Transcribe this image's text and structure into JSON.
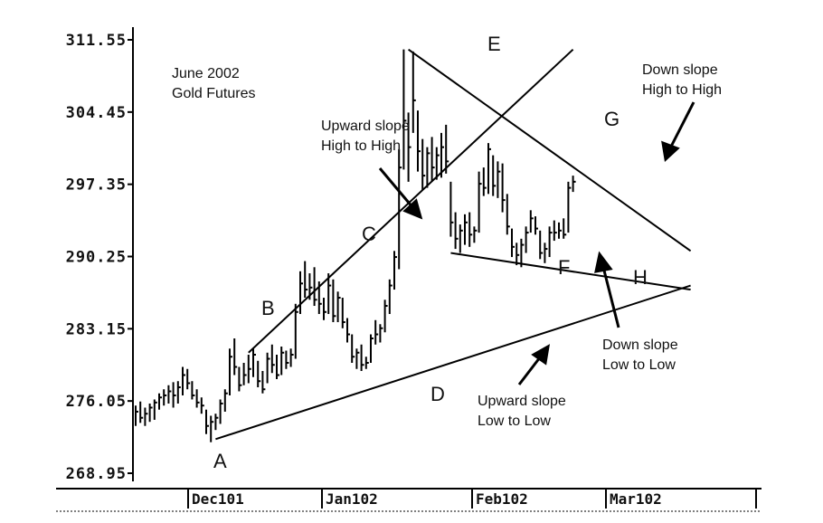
{
  "chart_data": {
    "type": "ohlc",
    "y_ticks": [
      "311.55",
      "304.45",
      "297.35",
      "290.25",
      "283.15",
      "276.05",
      "268.95"
    ],
    "ylim": [
      268.95,
      311.55
    ],
    "x_ticks": [
      "Dec101",
      "Jan102",
      "Feb102",
      "Mar102"
    ],
    "grid": false,
    "title": "June 2002\nGold Futures",
    "bars_note": "daily high-low bars, approximate",
    "bars": [
      {
        "h": 275.6,
        "l": 273.6,
        "c": 275.0
      },
      {
        "h": 276.0,
        "l": 273.9,
        "c": 274.4
      },
      {
        "h": 275.4,
        "l": 273.6,
        "c": 274.8
      },
      {
        "h": 275.8,
        "l": 274.0,
        "c": 275.4
      },
      {
        "h": 276.2,
        "l": 274.2,
        "c": 275.9
      },
      {
        "h": 276.8,
        "l": 275.2,
        "c": 276.4
      },
      {
        "h": 277.2,
        "l": 275.6,
        "c": 276.6
      },
      {
        "h": 277.6,
        "l": 275.8,
        "c": 277.0
      },
      {
        "h": 277.9,
        "l": 275.4,
        "c": 276.6
      },
      {
        "h": 278.0,
        "l": 275.8,
        "c": 277.4
      },
      {
        "h": 279.4,
        "l": 276.6,
        "c": 278.6
      },
      {
        "h": 279.2,
        "l": 277.2,
        "c": 277.8
      },
      {
        "h": 278.0,
        "l": 276.2,
        "c": 276.6
      },
      {
        "h": 277.2,
        "l": 275.4,
        "c": 275.9
      },
      {
        "h": 276.4,
        "l": 274.8,
        "c": 275.6
      },
      {
        "h": 275.2,
        "l": 272.8,
        "c": 273.6
      },
      {
        "h": 274.6,
        "l": 272.0,
        "c": 274.0
      },
      {
        "h": 274.8,
        "l": 273.2,
        "c": 274.4
      },
      {
        "h": 276.2,
        "l": 273.8,
        "c": 275.8
      },
      {
        "h": 277.2,
        "l": 275.0,
        "c": 276.8
      },
      {
        "h": 281.2,
        "l": 276.6,
        "c": 280.4
      },
      {
        "h": 282.2,
        "l": 278.6,
        "c": 279.4
      },
      {
        "h": 279.4,
        "l": 277.0,
        "c": 277.6
      },
      {
        "h": 279.8,
        "l": 277.6,
        "c": 278.6
      },
      {
        "h": 280.6,
        "l": 277.8,
        "c": 279.2
      },
      {
        "h": 281.2,
        "l": 278.4,
        "c": 280.6
      },
      {
        "h": 280.0,
        "l": 277.4,
        "c": 278.0
      },
      {
        "h": 279.0,
        "l": 276.8,
        "c": 277.2
      },
      {
        "h": 280.8,
        "l": 277.8,
        "c": 280.2
      },
      {
        "h": 281.6,
        "l": 278.8,
        "c": 279.6
      },
      {
        "h": 280.6,
        "l": 278.2,
        "c": 278.6
      },
      {
        "h": 281.4,
        "l": 278.6,
        "c": 280.8
      },
      {
        "h": 281.0,
        "l": 279.2,
        "c": 279.8
      },
      {
        "h": 281.2,
        "l": 279.4,
        "c": 280.6
      },
      {
        "h": 285.6,
        "l": 280.2,
        "c": 284.8
      },
      {
        "h": 288.8,
        "l": 284.6,
        "c": 287.6
      },
      {
        "h": 289.8,
        "l": 286.2,
        "c": 287.0
      },
      {
        "h": 288.6,
        "l": 286.0,
        "c": 287.2
      },
      {
        "h": 289.2,
        "l": 285.4,
        "c": 286.0
      },
      {
        "h": 287.8,
        "l": 284.6,
        "c": 285.6
      },
      {
        "h": 286.2,
        "l": 284.0,
        "c": 284.8
      },
      {
        "h": 288.6,
        "l": 284.6,
        "c": 287.4
      },
      {
        "h": 288.0,
        "l": 283.8,
        "c": 284.4
      },
      {
        "h": 286.8,
        "l": 283.8,
        "c": 286.2
      },
      {
        "h": 286.2,
        "l": 283.2,
        "c": 283.8
      },
      {
        "h": 284.2,
        "l": 281.8,
        "c": 282.6
      },
      {
        "h": 282.6,
        "l": 279.8,
        "c": 280.4
      },
      {
        "h": 281.2,
        "l": 279.2,
        "c": 280.8
      },
      {
        "h": 281.6,
        "l": 279.0,
        "c": 279.6
      },
      {
        "h": 280.4,
        "l": 279.2,
        "c": 279.8
      },
      {
        "h": 282.6,
        "l": 279.8,
        "c": 282.2
      },
      {
        "h": 284.0,
        "l": 281.6,
        "c": 282.6
      },
      {
        "h": 283.6,
        "l": 281.8,
        "c": 283.2
      },
      {
        "h": 286.0,
        "l": 282.8,
        "c": 285.4
      },
      {
        "h": 288.0,
        "l": 284.6,
        "c": 287.4
      },
      {
        "h": 290.8,
        "l": 287.0,
        "c": 290.2
      },
      {
        "h": 300.8,
        "l": 289.0,
        "c": 299.0
      },
      {
        "h": 310.6,
        "l": 298.8,
        "c": 303.6
      },
      {
        "h": 304.4,
        "l": 297.6,
        "c": 301.0
      },
      {
        "h": 310.4,
        "l": 302.4,
        "c": 305.6
      },
      {
        "h": 304.6,
        "l": 298.6,
        "c": 300.6
      },
      {
        "h": 301.8,
        "l": 296.8,
        "c": 298.2
      },
      {
        "h": 301.0,
        "l": 297.0,
        "c": 300.4
      },
      {
        "h": 302.0,
        "l": 297.6,
        "c": 299.0
      },
      {
        "h": 301.0,
        "l": 297.8,
        "c": 300.2
      },
      {
        "h": 302.4,
        "l": 298.0,
        "c": 301.0
      },
      {
        "h": 303.2,
        "l": 298.4,
        "c": 299.6
      },
      {
        "h": 297.6,
        "l": 292.2,
        "c": 293.6
      },
      {
        "h": 294.6,
        "l": 291.0,
        "c": 292.0
      },
      {
        "h": 293.4,
        "l": 290.6,
        "c": 292.8
      },
      {
        "h": 294.4,
        "l": 291.4,
        "c": 293.6
      },
      {
        "h": 294.6,
        "l": 291.2,
        "c": 292.4
      },
      {
        "h": 293.2,
        "l": 291.6,
        "c": 292.8
      },
      {
        "h": 298.6,
        "l": 292.6,
        "c": 297.4
      },
      {
        "h": 299.0,
        "l": 296.2,
        "c": 297.0
      },
      {
        "h": 301.4,
        "l": 296.4,
        "c": 300.8
      },
      {
        "h": 300.2,
        "l": 296.2,
        "c": 297.2
      },
      {
        "h": 299.6,
        "l": 296.0,
        "c": 298.6
      },
      {
        "h": 299.4,
        "l": 294.6,
        "c": 295.8
      },
      {
        "h": 296.4,
        "l": 292.4,
        "c": 293.2
      },
      {
        "h": 293.0,
        "l": 290.2,
        "c": 291.2
      },
      {
        "h": 291.6,
        "l": 289.4,
        "c": 290.4
      },
      {
        "h": 292.0,
        "l": 289.2,
        "c": 291.4
      },
      {
        "h": 293.2,
        "l": 290.6,
        "c": 292.6
      },
      {
        "h": 294.8,
        "l": 292.6,
        "c": 294.0
      },
      {
        "h": 294.2,
        "l": 292.4,
        "c": 293.0
      },
      {
        "h": 292.8,
        "l": 290.0,
        "c": 290.6
      },
      {
        "h": 291.6,
        "l": 289.6,
        "c": 291.0
      },
      {
        "h": 293.2,
        "l": 290.2,
        "c": 292.6
      },
      {
        "h": 293.8,
        "l": 291.8,
        "c": 292.6
      },
      {
        "h": 293.6,
        "l": 292.0,
        "c": 292.8
      },
      {
        "h": 294.0,
        "l": 292.0,
        "c": 292.4
      },
      {
        "h": 297.6,
        "l": 292.6,
        "c": 297.0
      },
      {
        "h": 298.2,
        "l": 296.6,
        "c": 297.6
      }
    ],
    "annotations": {
      "title": "June 2002\nGold Futures",
      "upward_high": "Upward slope\nHigh to High",
      "down_high": "Down slope\nHigh to High",
      "down_low": "Down slope\nLow to Low",
      "upward_low": "Upward slope\nLow to Low"
    },
    "points": [
      "A",
      "B",
      "C",
      "D",
      "E",
      "F",
      "G",
      "H"
    ],
    "trendlines": [
      {
        "name": "upward-high",
        "from": {
          "bar": 24,
          "price": 280.8
        },
        "to": {
          "bar": 93,
          "price": 310.6
        }
      },
      {
        "name": "upward-low",
        "from": {
          "bar": 17,
          "price": 272.3
        },
        "to": {
          "bar": 118,
          "price": 287.4
        }
      },
      {
        "name": "down-high",
        "from": {
          "bar": 58,
          "price": 310.6
        },
        "to": {
          "bar": 118,
          "price": 290.8
        }
      },
      {
        "name": "down-low",
        "from": {
          "bar": 67,
          "price": 290.6
        },
        "to": {
          "bar": 118,
          "price": 287.0
        }
      }
    ]
  }
}
